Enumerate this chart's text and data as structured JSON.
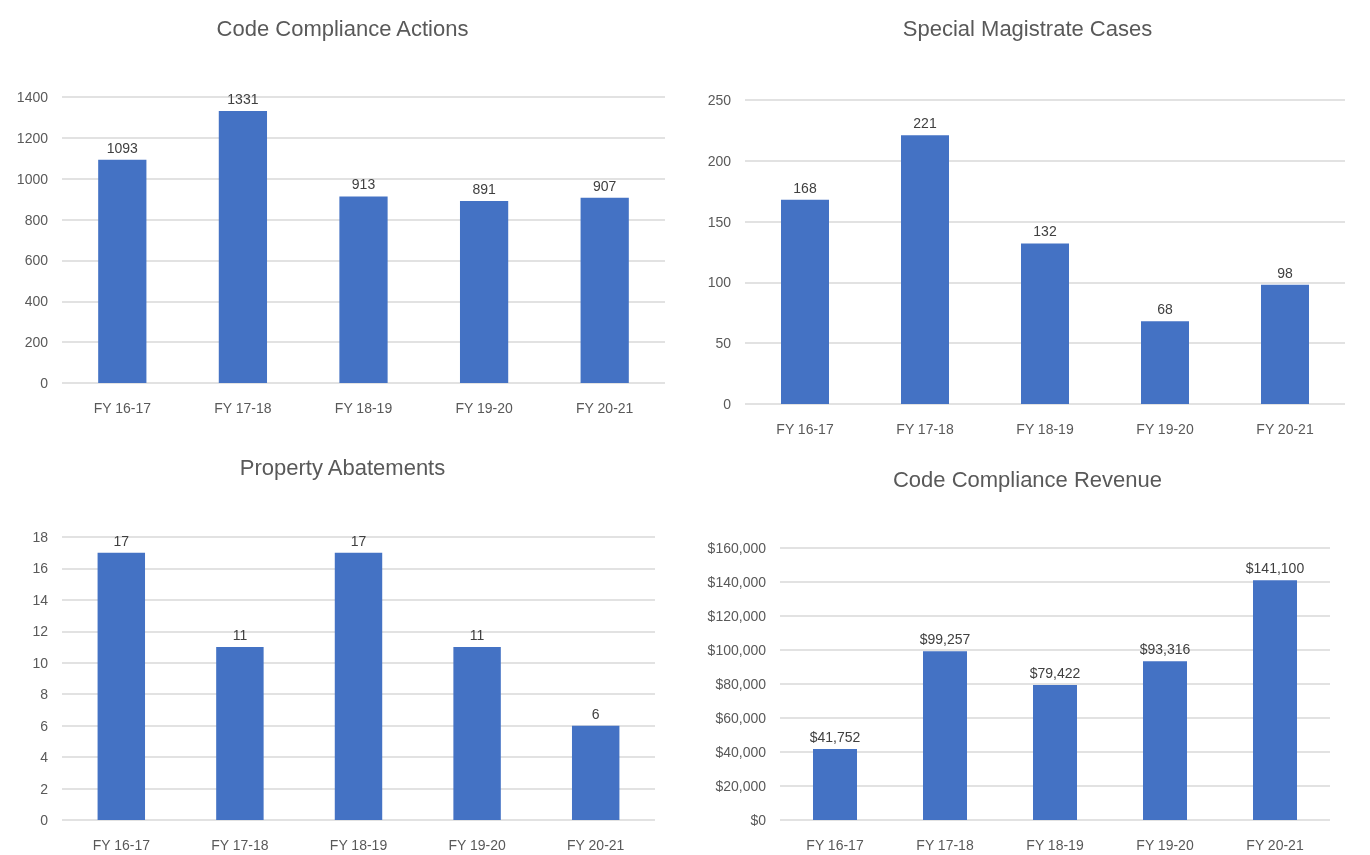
{
  "chart_data": [
    {
      "type": "bar",
      "title": "Code Compliance Actions",
      "categories": [
        "FY 16-17",
        "FY 17-18",
        "FY 18-19",
        "FY 19-20",
        "FY 20-21"
      ],
      "values": [
        1093,
        1331,
        913,
        891,
        907
      ],
      "color": "#4472c4",
      "ylim": [
        0,
        1400
      ],
      "yticks": [
        0,
        200,
        400,
        600,
        800,
        1000,
        1200,
        1400
      ],
      "grid": "y",
      "data_labels": true
    },
    {
      "type": "bar",
      "title": "Special Magistrate Cases",
      "categories": [
        "FY 16-17",
        "FY 17-18",
        "FY 18-19",
        "FY 19-20",
        "FY 20-21"
      ],
      "values": [
        168,
        221,
        132,
        68,
        98
      ],
      "color": "#4472c4",
      "ylim": [
        0,
        250
      ],
      "yticks": [
        0,
        50,
        100,
        150,
        200,
        250
      ],
      "grid": "y",
      "data_labels": true
    },
    {
      "type": "bar",
      "title": "Property Abatements",
      "categories": [
        "FY 16-17",
        "FY 17-18",
        "FY 18-19",
        "FY 19-20",
        "FY 20-21"
      ],
      "values": [
        17,
        11,
        17,
        11,
        6
      ],
      "color": "#4472c4",
      "ylim": [
        0,
        18
      ],
      "yticks": [
        0,
        2,
        4,
        6,
        8,
        10,
        12,
        14,
        16,
        18
      ],
      "grid": "y",
      "data_labels": true
    },
    {
      "type": "bar",
      "title": "Code Compliance Revenue",
      "categories": [
        "FY 16-17",
        "FY 17-18",
        "FY 18-19",
        "FY 19-20",
        "FY 20-21"
      ],
      "values": [
        41752,
        99257,
        79422,
        93316,
        141100
      ],
      "color": "#4472c4",
      "ylim": [
        0,
        160000
      ],
      "yticks": [
        {
          "value": 0,
          "label": "$0"
        },
        {
          "value": 20000,
          "label": "$20,000"
        },
        {
          "value": 40000,
          "label": "$40,000"
        },
        {
          "value": 60000,
          "label": "$60,000"
        },
        {
          "value": 80000,
          "label": "$80,000"
        },
        {
          "value": 100000,
          "label": "$100,000"
        },
        {
          "value": 120000,
          "label": "$120,000"
        },
        {
          "value": 140000,
          "label": "$140,000"
        },
        {
          "value": 160000,
          "label": "$160,000"
        }
      ],
      "grid": "y",
      "value_labels": [
        "$41,752",
        "$99,257",
        "$79,422",
        "$93,316",
        "$141,100"
      ]
    }
  ]
}
